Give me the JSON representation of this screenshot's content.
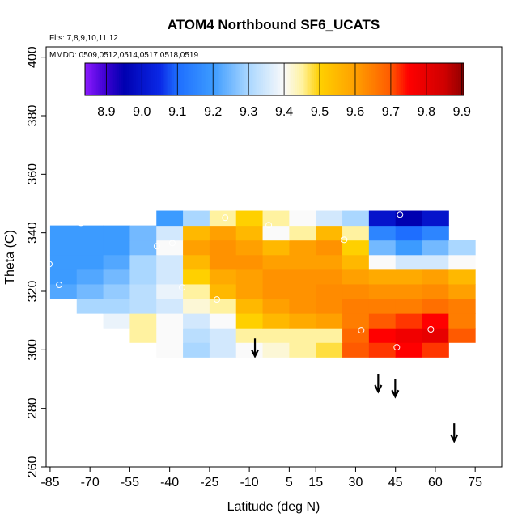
{
  "chart_data": {
    "type": "heatmap",
    "title": "ATOM4 Northbound SF6_UCATS",
    "annotations": [
      "Flts: 7,8,9,10,11,12",
      "MMDD: 0509,0512,0514,0517,0518,0519"
    ],
    "xlabel": "Latitude (deg N)",
    "ylabel": "Theta (C)",
    "xlim": [
      -86.5,
      85
    ],
    "ylim": [
      260,
      403.5
    ],
    "xticks": [
      -85,
      -70,
      -55,
      -40,
      -25,
      -10,
      5,
      15,
      30,
      45,
      60,
      75
    ],
    "yticks": [
      260,
      280,
      300,
      320,
      340,
      360,
      380,
      400
    ],
    "x": [
      -80,
      -70,
      -60,
      -50,
      -40,
      -30,
      -20,
      -10,
      0,
      10,
      20,
      30,
      40,
      50,
      60,
      70
    ],
    "y": [
      300,
      305,
      310,
      315,
      320,
      325,
      330,
      335,
      340,
      345
    ],
    "z": [
      [
        null,
        null,
        null,
        null,
        9.4,
        9.3,
        9.35,
        9.4,
        9.42,
        9.45,
        9.48,
        9.7,
        9.72,
        9.75,
        9.72,
        null
      ],
      [
        null,
        null,
        null,
        9.45,
        9.4,
        9.32,
        9.35,
        9.45,
        9.45,
        9.45,
        9.45,
        9.68,
        9.75,
        9.78,
        9.8,
        9.7
      ],
      [
        null,
        null,
        9.38,
        9.45,
        9.4,
        9.35,
        9.4,
        9.5,
        9.55,
        9.58,
        9.6,
        9.65,
        9.7,
        9.72,
        9.75,
        9.65
      ],
      [
        null,
        9.3,
        9.3,
        9.32,
        9.35,
        9.42,
        9.45,
        9.55,
        9.6,
        9.62,
        9.63,
        9.65,
        9.65,
        9.65,
        9.67,
        9.65
      ],
      [
        9.22,
        9.25,
        9.28,
        9.32,
        9.38,
        9.45,
        9.55,
        9.6,
        9.62,
        9.62,
        9.63,
        9.63,
        9.62,
        9.62,
        9.63,
        9.6
      ],
      [
        9.2,
        9.22,
        9.25,
        9.3,
        9.35,
        9.5,
        9.58,
        9.6,
        9.62,
        9.62,
        9.62,
        9.6,
        9.58,
        9.58,
        9.6,
        9.55
      ],
      [
        9.2,
        9.2,
        9.22,
        9.3,
        9.35,
        9.55,
        9.62,
        9.62,
        9.6,
        9.6,
        9.6,
        9.55,
        9.4,
        9.35,
        9.35,
        9.4
      ],
      [
        9.2,
        9.2,
        9.2,
        9.25,
        9.4,
        9.6,
        9.62,
        9.6,
        9.55,
        9.6,
        9.62,
        9.5,
        9.25,
        9.2,
        9.25,
        9.3
      ],
      [
        9.2,
        9.2,
        9.2,
        9.25,
        9.35,
        9.55,
        9.6,
        9.55,
        9.4,
        9.45,
        9.55,
        9.45,
        9.15,
        9.1,
        9.15,
        null
      ],
      [
        null,
        null,
        null,
        null,
        9.2,
        9.3,
        9.45,
        9.5,
        9.45,
        9.4,
        9.35,
        9.3,
        9.0,
        8.95,
        9.0,
        null
      ]
    ],
    "points": {
      "x": [
        -73.4,
        -85.3,
        -81.6,
        -44.8,
        -39.0,
        -35.3,
        -22.2,
        -19.1,
        -2.7,
        25.7,
        32.1,
        45.5,
        46.7,
        58.3,
        67.7
      ],
      "y": [
        343.4,
        329.3,
        322.2,
        335.4,
        336.5,
        321.3,
        317.2,
        345.1,
        342.6,
        337.6,
        306.7,
        300.9,
        346.2,
        307.0,
        299.5
      ]
    },
    "arrows": {
      "x": [
        -7.9,
        38.5,
        44.9,
        67.1
      ],
      "y": [
        297.8,
        285.7,
        284.0,
        268.8
      ]
    },
    "colorbar": {
      "clim": [
        8.84,
        9.905
      ],
      "ticks": [
        8.9,
        {
          "value": 9,
          "label": "9.0"
        },
        9.1,
        9.2,
        9.3,
        9.4,
        9.5,
        9.6,
        9.7,
        9.8,
        9.9
      ],
      "stops": [
        [
          8.84,
          "#8c1aff"
        ],
        [
          8.9,
          "#3a00d0"
        ],
        [
          8.95,
          "#0000b0"
        ],
        [
          9.05,
          "#0a28e6"
        ],
        [
          9.1,
          "#1e6eff"
        ],
        [
          9.2,
          "#3c9bff"
        ],
        [
          9.3,
          "#aad7ff"
        ],
        [
          9.4,
          "#fafafa"
        ],
        [
          9.45,
          "#fff2a0"
        ],
        [
          9.5,
          "#ffd000"
        ],
        [
          9.6,
          "#ffa000"
        ],
        [
          9.7,
          "#ff5a00"
        ],
        [
          9.75,
          "#ff0000"
        ],
        [
          9.85,
          "#d00000"
        ],
        [
          9.905,
          "#900000"
        ]
      ]
    }
  }
}
